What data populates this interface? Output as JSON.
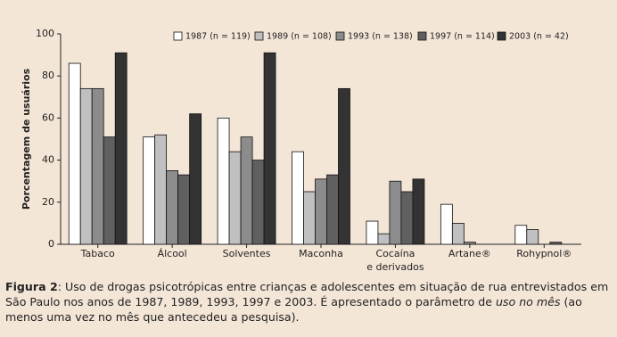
{
  "chart_data": {
    "type": "bar",
    "y_label": "Porcentagem de usuários",
    "categories": [
      "Tabaco",
      "Álcool",
      "Solventes",
      "Maconha",
      "Cocaína\ne derivados",
      "Artane®",
      "Rohypnol®"
    ],
    "series": [
      {
        "name": "1987 (n = 119)",
        "color": "#ffffff",
        "values": [
          86,
          51,
          60,
          44,
          11,
          19,
          9
        ]
      },
      {
        "name": "1989 (n = 108)",
        "color": "#c0c0c0",
        "values": [
          74,
          52,
          44,
          25,
          5,
          10,
          7
        ]
      },
      {
        "name": "1993 (n = 138)",
        "color": "#8c8c8c",
        "values": [
          74,
          35,
          51,
          31,
          30,
          1,
          0
        ]
      },
      {
        "name": "1997 (n = 114)",
        "color": "#606060",
        "values": [
          51,
          33,
          40,
          33,
          25,
          0,
          1
        ]
      },
      {
        "name": "2003 (n = 42)",
        "color": "#333333",
        "values": [
          91,
          62,
          91,
          74,
          31,
          0,
          0
        ]
      }
    ],
    "ylim": [
      0,
      100
    ],
    "yticks": [
      0,
      20,
      40,
      60,
      80,
      100
    ],
    "grid": false
  },
  "caption": {
    "label": "Figura 2",
    "text1": ": Uso de drogas psicotrópicas entre crianças e adolescentes em situação de rua entrevistados em São Paulo nos anos de 1987, 1989, 1993, 1997 e 2003. É apresentado o parâmetro de ",
    "emphasis": "uso no mês",
    "text2": " (ao menos uma vez no mês que antecedeu a pesquisa)."
  }
}
